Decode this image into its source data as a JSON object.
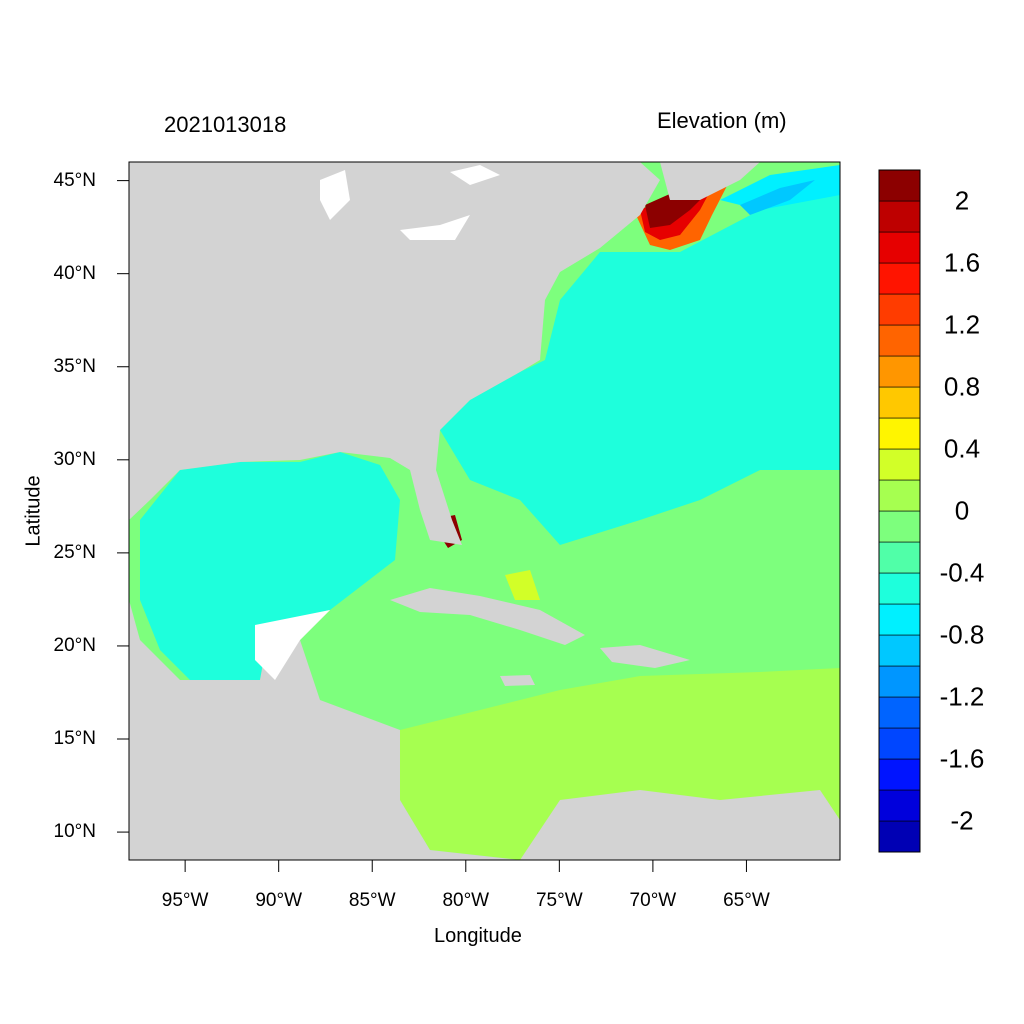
{
  "titles": {
    "time": "2021013018",
    "variable": "Elevation (m)"
  },
  "axes": {
    "xlabel": "Longitude",
    "ylabel": "Latitude",
    "x_ticks": [
      {
        "label": "95°W",
        "lon": -95
      },
      {
        "label": "90°W",
        "lon": -90
      },
      {
        "label": "85°W",
        "lon": -85
      },
      {
        "label": "80°W",
        "lon": -80
      },
      {
        "label": "75°W",
        "lon": -75
      },
      {
        "label": "70°W",
        "lon": -70
      },
      {
        "label": "65°W",
        "lon": -65
      }
    ],
    "y_ticks": [
      {
        "label": "45°N",
        "lat": 45
      },
      {
        "label": "40°N",
        "lat": 40
      },
      {
        "label": "35°N",
        "lat": 35
      },
      {
        "label": "30°N",
        "lat": 30
      },
      {
        "label": "25°N",
        "lat": 25
      },
      {
        "label": "20°N",
        "lat": 20
      },
      {
        "label": "15°N",
        "lat": 15
      },
      {
        "label": "10°N",
        "lat": 10
      }
    ],
    "lon_range": [
      -98,
      -60
    ],
    "lat_range": [
      8.5,
      46
    ]
  },
  "colorbar": {
    "levels": [
      -2.2,
      -2.0,
      -1.8,
      -1.6,
      -1.4,
      -1.2,
      -1.0,
      -0.8,
      -0.6,
      -0.4,
      -0.2,
      0.0,
      0.2,
      0.4,
      0.6,
      0.8,
      1.0,
      1.2,
      1.4,
      1.6,
      1.8,
      2.0,
      2.2
    ],
    "colors": [
      "#0000b4",
      "#0000dc",
      "#0014ff",
      "#0046ff",
      "#0064ff",
      "#0096ff",
      "#00c8ff",
      "#00f0ff",
      "#1effdc",
      "#50ffa8",
      "#7dff7d",
      "#a6ff50",
      "#d2ff28",
      "#fff500",
      "#ffc800",
      "#ff9600",
      "#ff6400",
      "#ff3c00",
      "#ff1400",
      "#e60000",
      "#be0000",
      "#8c0000"
    ],
    "labels": [
      "2",
      "1.6",
      "1.2",
      "0.8",
      "0.4",
      "0",
      "-0.4",
      "-0.8",
      "-1.2",
      "-1.6",
      "-2"
    ],
    "label_values": [
      2.0,
      1.6,
      1.2,
      0.8,
      0.4,
      0.0,
      -0.4,
      -0.8,
      -1.2,
      -1.6,
      -2.0
    ]
  },
  "colors": {
    "land": "#d3d3d3",
    "ocean_default": "#7dff7d"
  }
}
